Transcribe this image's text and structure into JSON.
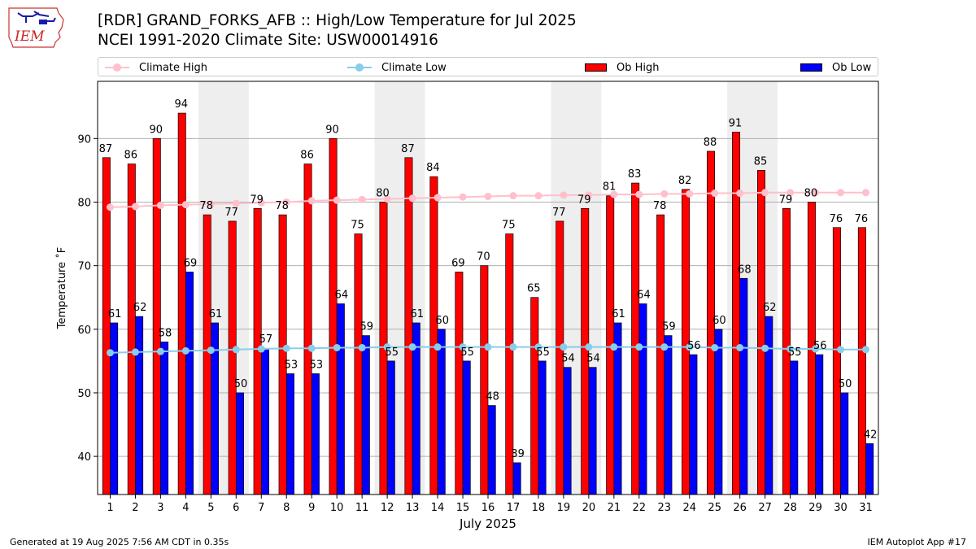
{
  "header": {
    "title_line1": "[RDR] GRAND_FORKS_AFB :: High/Low Temperature for Jul 2025",
    "title_line2": "NCEI 1991-2020 Climate Site: USW00014916"
  },
  "logo": {
    "text": "IEM"
  },
  "footer": {
    "left": "Generated at 19 Aug 2025 7:56 AM CDT in 0.35s",
    "right": "IEM Autoplot App #17"
  },
  "colors": {
    "ob_high": "#ff0000",
    "ob_low": "#0000ff",
    "climate_high": "#ffc0cb",
    "climate_low": "#87ceeb",
    "weekend_shade": "#eeeeee",
    "grid": "#b0b0b0"
  },
  "chart_data": {
    "type": "bar",
    "xlabel": "July 2025",
    "ylabel": "Temperature $^\\circ$F",
    "ylim": [
      34,
      99
    ],
    "yticks": [
      40,
      50,
      60,
      70,
      80,
      90
    ],
    "grid": "horizontal",
    "legend_position": "top",
    "x": [
      1,
      2,
      3,
      4,
      5,
      6,
      7,
      8,
      9,
      10,
      11,
      12,
      13,
      14,
      15,
      16,
      17,
      18,
      19,
      20,
      21,
      22,
      23,
      24,
      25,
      26,
      27,
      28,
      29,
      30,
      31
    ],
    "shaded_days": [
      [
        5,
        6
      ],
      [
        12,
        13
      ],
      [
        19,
        20
      ],
      [
        26,
        27
      ]
    ],
    "series": [
      {
        "name": "Climate High",
        "kind": "line",
        "color": "#ffc0cb",
        "values": [
          79.2,
          79.3,
          79.5,
          79.6,
          79.7,
          79.8,
          79.9,
          80.0,
          80.2,
          80.3,
          80.4,
          80.5,
          80.6,
          80.7,
          80.8,
          80.9,
          81.0,
          81.0,
          81.1,
          81.1,
          81.2,
          81.2,
          81.3,
          81.3,
          81.4,
          81.4,
          81.5,
          81.5,
          81.5,
          81.5,
          81.5
        ]
      },
      {
        "name": "Climate Low",
        "kind": "line",
        "color": "#87ceeb",
        "values": [
          56.3,
          56.4,
          56.5,
          56.6,
          56.7,
          56.8,
          56.9,
          57.0,
          57.0,
          57.1,
          57.1,
          57.2,
          57.2,
          57.2,
          57.2,
          57.2,
          57.2,
          57.2,
          57.2,
          57.2,
          57.2,
          57.2,
          57.2,
          57.2,
          57.1,
          57.1,
          57.0,
          56.9,
          56.9,
          56.8,
          56.8
        ]
      },
      {
        "name": "Ob High",
        "kind": "bar",
        "color": "#ff0000",
        "values": [
          87,
          86,
          90,
          94,
          78,
          77,
          79,
          78,
          86,
          90,
          75,
          80,
          87,
          84,
          69,
          70,
          75,
          65,
          77,
          79,
          81,
          83,
          78,
          82,
          88,
          91,
          85,
          79,
          80,
          76,
          76
        ],
        "labels": [
          "87",
          "86",
          "90",
          "94",
          "78",
          "77",
          "79",
          "78",
          "86",
          "90",
          "75",
          "80",
          "87",
          "84",
          "69",
          "70",
          "75",
          "65",
          "77",
          "79",
          "81",
          "83",
          "78",
          "82",
          "88",
          "91",
          "85",
          "79",
          "80",
          "76",
          "76"
        ]
      },
      {
        "name": "Ob Low",
        "kind": "bar",
        "color": "#0000ff",
        "values": [
          61,
          62,
          58,
          69,
          61,
          50,
          57,
          53,
          53,
          64,
          59,
          55,
          61,
          60,
          55,
          48,
          39,
          55,
          54,
          54,
          61,
          64,
          59,
          56,
          60,
          68,
          62,
          55,
          56,
          50,
          42
        ],
        "labels": [
          "61",
          "62",
          "58",
          "69",
          "61",
          "50",
          "57",
          "53",
          "53",
          "64",
          "59",
          "55",
          "61",
          "60",
          "55",
          "48",
          "39",
          "55",
          "54",
          "54",
          "61",
          "64",
          "59",
          "56",
          "60",
          "68",
          "62",
          "55",
          "56",
          "50",
          "42"
        ]
      }
    ]
  }
}
